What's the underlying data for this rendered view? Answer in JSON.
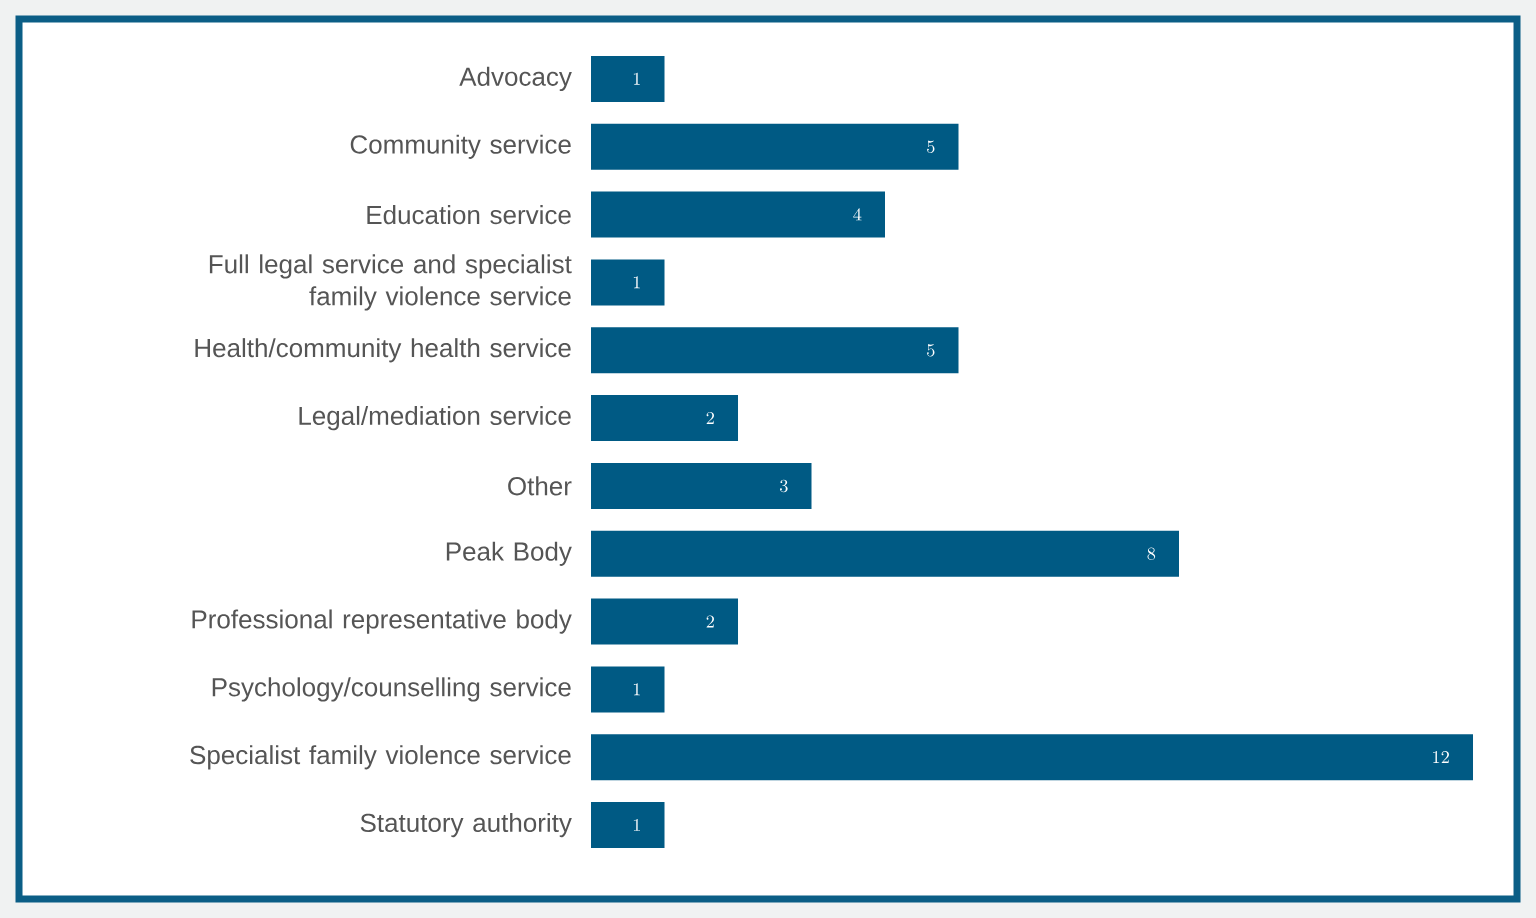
{
  "chart_data": {
    "type": "bar",
    "orientation": "horizontal",
    "categories": [
      "Advocacy",
      "Community service",
      "Education service",
      "Full legal service and specialist family violence service",
      "Health/community health service",
      "Legal/mediation service",
      "Other",
      "Peak Body",
      "Professional representative body",
      "Psychology/counselling service",
      "Specialist family violence service",
      "Statutory authority"
    ],
    "values": [
      1,
      5,
      4,
      1,
      5,
      2,
      3,
      8,
      2,
      1,
      12,
      1
    ],
    "color": "#005a84",
    "data_labels": true
  }
}
